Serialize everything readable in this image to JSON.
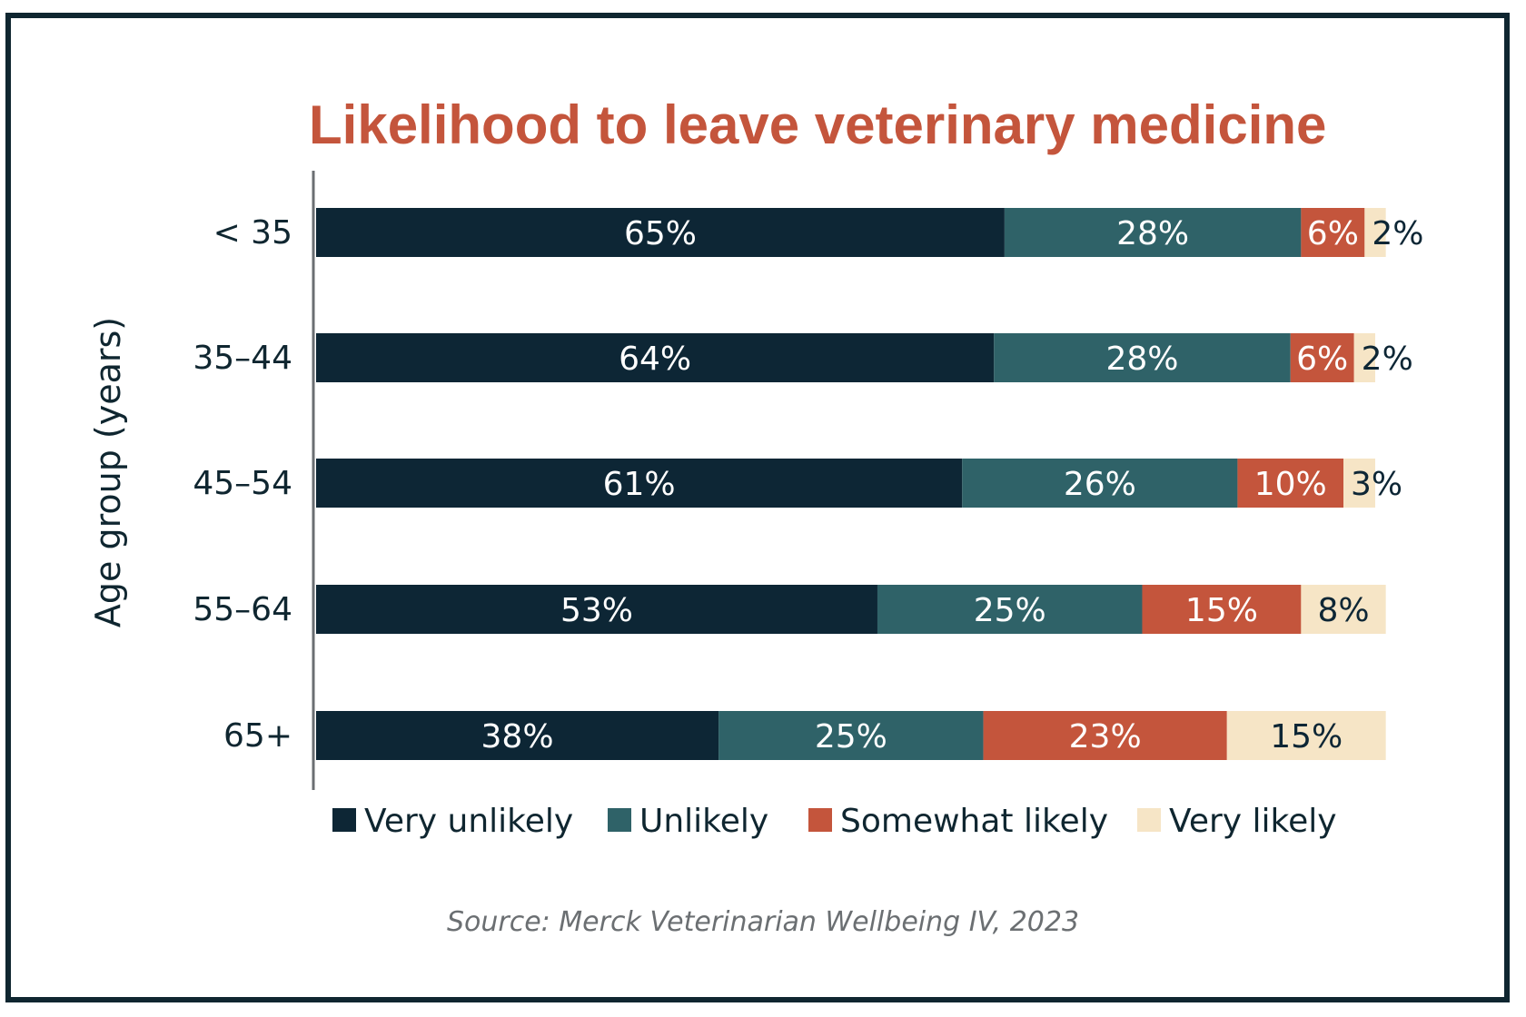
{
  "chart_data": {
    "type": "bar",
    "orientation": "horizontal",
    "stacked": true,
    "title": "Likelihood to leave veterinary medicine",
    "ylabel": "Age group (years)",
    "xlabel": "",
    "categories": [
      "< 35",
      "35–44",
      "45–54",
      "55–64",
      "65+"
    ],
    "series": [
      {
        "name": "Very unlikely",
        "color": "#0d2635",
        "label_color": "#ffffff",
        "values": [
          65,
          64,
          61,
          53,
          38
        ]
      },
      {
        "name": "Unlikely",
        "color": "#2f6268",
        "label_color": "#ffffff",
        "values": [
          28,
          28,
          26,
          25,
          25
        ]
      },
      {
        "name": "Somewhat likely",
        "color": "#c4553c",
        "label_color": "#ffffff",
        "values": [
          6,
          6,
          10,
          15,
          23
        ]
      },
      {
        "name": "Very likely",
        "color": "#f6e5c6",
        "label_color": "#0d2635",
        "values": [
          2,
          2,
          3,
          8,
          15
        ]
      }
    ],
    "value_suffix": "%",
    "grid": false,
    "legend_position": "bottom",
    "source": "Source: Merck Veterinarian Wellbeing IV, 2023"
  }
}
